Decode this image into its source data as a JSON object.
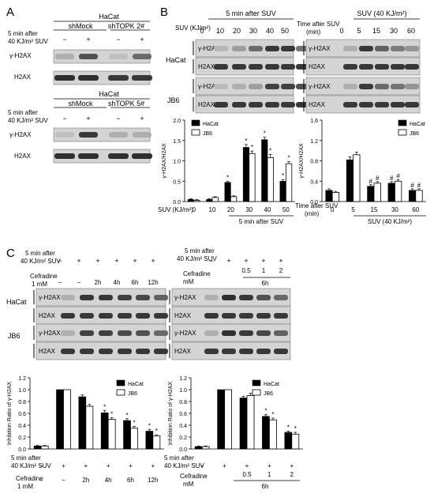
{
  "panel_labels": {
    "a": "A",
    "b": "B",
    "c": "C"
  },
  "symbols": {
    "minus": "−",
    "plus": "+",
    "star": "*",
    "hash": "#"
  },
  "labels": {
    "hacat": "HaCat",
    "jb6": "JB6",
    "gh2ax": "γ-H2AX",
    "h2ax": "H2AX",
    "shmock": "shMock",
    "shtopk2": "shTOPK 2#",
    "shtopk5": "shTOPK 5#",
    "min5_after": "5 min after",
    "suv_40": "40 KJ/m² SUV",
    "suv_kj": "SUV (KJ/m²)",
    "min5_after_suv": "5 min after SUV",
    "time_after_suv_1": "Time after SUV",
    "time_after_suv_2": "(min)",
    "suv_40_paren": "SUV (40 KJ/m²)",
    "ratio_axis": "γ-H2AX/H2AX",
    "inhib_axis": "Inhibition Ratio of γ-H2AX",
    "cefradine": "Cefradine",
    "mm_1": "1 mM",
    "mm": "mM",
    "h6": "6h"
  },
  "blot_a": {
    "treatment": [
      "−",
      "+",
      "−",
      "+"
    ],
    "treatment_bottom": [
      "−",
      "+",
      "−",
      "+"
    ]
  },
  "blot_b": {
    "suv_doses": [
      "0",
      "10",
      "20",
      "30",
      "40",
      "50"
    ],
    "times": [
      "0",
      "5",
      "15",
      "30",
      "60"
    ]
  },
  "blot_c": {
    "suv_left": [
      "−",
      "+",
      "+",
      "+",
      "+",
      "+"
    ],
    "cef_left": [
      "−",
      "−",
      "2h",
      "4h",
      "6h",
      "12h"
    ],
    "suv_right": [
      "−",
      "+",
      "+",
      "+",
      "+"
    ],
    "cef_right": [
      "",
      "",
      "0.5",
      "1",
      "2"
    ]
  },
  "chart_data": [
    {
      "type": "bar",
      "categories": [
        "0",
        "10",
        "20",
        "30",
        "40",
        "50"
      ],
      "series": [
        {
          "name": "HaCat",
          "values": [
            0.05,
            0.05,
            0.47,
            1.33,
            1.52,
            0.5
          ],
          "errors": [
            0.02,
            0.02,
            0.03,
            0.07,
            0.06,
            0.04
          ]
        },
        {
          "name": "JB6",
          "values": [
            0.03,
            0.1,
            0.12,
            1.18,
            1.08,
            0.93
          ],
          "errors": [
            0.02,
            0.02,
            0.02,
            0.06,
            0.08,
            0.05
          ]
        }
      ],
      "significance": [
        "",
        "",
        "*",
        "*",
        "*",
        "*"
      ],
      "significance_jb6": [
        "",
        "",
        "",
        "*",
        "*",
        "*"
      ],
      "ylabel": "γ-H2AX/H2AX",
      "xlabel": "SUV (KJ/m²)",
      "group_label": "5 min after SUV",
      "yticks": [
        "0.0",
        "0.5",
        "1.0",
        "1.5",
        "2.0"
      ],
      "ylim": [
        0,
        2.0
      ],
      "legend": "top-left"
    },
    {
      "type": "bar",
      "categories": [
        "0",
        "5",
        "15",
        "30",
        "60"
      ],
      "series": [
        {
          "name": "HaCat",
          "values": [
            0.22,
            0.82,
            0.3,
            0.36,
            0.22
          ],
          "errors": [
            0.03,
            0.06,
            0.03,
            0.03,
            0.03
          ]
        },
        {
          "name": "JB6",
          "values": [
            0.18,
            0.92,
            0.36,
            0.4,
            0.22
          ],
          "errors": [
            0.02,
            0.05,
            0.03,
            0.03,
            0.03
          ]
        }
      ],
      "significance": [
        "",
        "",
        "#",
        "#",
        "#"
      ],
      "ylabel": "γ-H2AX/H2AX",
      "xlabel": "Time after SUV (min)",
      "group_label": "SUV (40 KJ/m²)",
      "yticks": [
        "0.0",
        "0.4",
        "0.8",
        "1.2",
        "1.6"
      ],
      "ylim": [
        0,
        1.6
      ],
      "legend": "top-right"
    },
    {
      "type": "bar",
      "categories": [
        "−/−",
        "+/−",
        "+/2h",
        "+/4h",
        "+/6h",
        "+/12h"
      ],
      "series": [
        {
          "name": "HaCat",
          "values": [
            0.05,
            1.0,
            0.88,
            0.61,
            0.48,
            0.3
          ],
          "errors": [
            0.01,
            0.0,
            0.03,
            0.04,
            0.03,
            0.03
          ]
        },
        {
          "name": "JB6",
          "values": [
            0.05,
            1.0,
            0.72,
            0.5,
            0.35,
            0.22
          ],
          "errors": [
            0.01,
            0.0,
            0.03,
            0.03,
            0.03,
            0.02
          ]
        }
      ],
      "significance": [
        "",
        "",
        "",
        "*",
        "*",
        "*"
      ],
      "ylabel": "Inhibition Ratio of γ-H2AX",
      "yticks": [
        "0.0",
        "0.2",
        "0.4",
        "0.6",
        "0.8",
        "1.0",
        "1.2"
      ],
      "ylim": [
        0,
        1.2
      ],
      "legend": "top-right"
    },
    {
      "type": "bar",
      "categories": [
        "−",
        "+",
        "0.5",
        "1",
        "2"
      ],
      "series": [
        {
          "name": "HaCat",
          "values": [
            0.04,
            1.0,
            0.86,
            0.55,
            0.28
          ],
          "errors": [
            0.01,
            0.0,
            0.03,
            0.03,
            0.02
          ]
        },
        {
          "name": "JB6",
          "values": [
            0.04,
            1.0,
            0.9,
            0.49,
            0.25
          ],
          "errors": [
            0.01,
            0.0,
            0.04,
            0.03,
            0.03
          ]
        }
      ],
      "significance": [
        "",
        "",
        "",
        "*",
        "*"
      ],
      "ylabel": "Inhibition Ratio of γ-H2AX",
      "yticks": [
        "0.0",
        "0.2",
        "0.4",
        "0.6",
        "0.8",
        "1.0",
        "1.2"
      ],
      "ylim": [
        0,
        1.2
      ],
      "legend": "top-right"
    }
  ]
}
